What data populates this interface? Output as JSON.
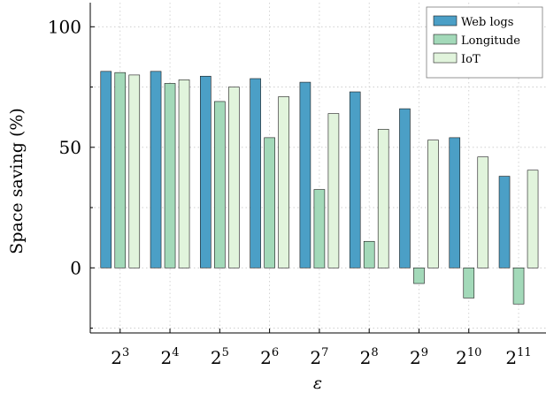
{
  "chart_data": {
    "type": "bar",
    "xlabel": "ε",
    "ylabel": "Space saving (%)",
    "categories": [
      "2^3",
      "2^4",
      "2^5",
      "2^6",
      "2^7",
      "2^8",
      "2^9",
      "2^10",
      "2^11"
    ],
    "category_labels": [
      {
        "base": "2",
        "exp": "3"
      },
      {
        "base": "2",
        "exp": "4"
      },
      {
        "base": "2",
        "exp": "5"
      },
      {
        "base": "2",
        "exp": "6"
      },
      {
        "base": "2",
        "exp": "7"
      },
      {
        "base": "2",
        "exp": "8"
      },
      {
        "base": "2",
        "exp": "9"
      },
      {
        "base": "2",
        "exp": "10"
      },
      {
        "base": "2",
        "exp": "11"
      }
    ],
    "series": [
      {
        "name": "Web logs",
        "color": "#4b9fc6",
        "values": [
          81.5,
          81.5,
          79.5,
          78.5,
          77,
          73,
          66,
          54,
          38
        ]
      },
      {
        "name": "Longitude",
        "color": "#a3d9b9",
        "values": [
          81,
          76.5,
          69,
          54,
          32.5,
          11,
          -6.5,
          -12.5,
          -15
        ]
      },
      {
        "name": "IoT",
        "color": "#e1f4dc",
        "values": [
          80,
          78,
          75,
          71,
          64,
          57.5,
          53,
          46,
          40.5
        ]
      }
    ],
    "ylim": [
      -27,
      110
    ],
    "yticks": [
      0,
      50,
      100
    ],
    "legend_position": "top-right",
    "grid": true
  }
}
